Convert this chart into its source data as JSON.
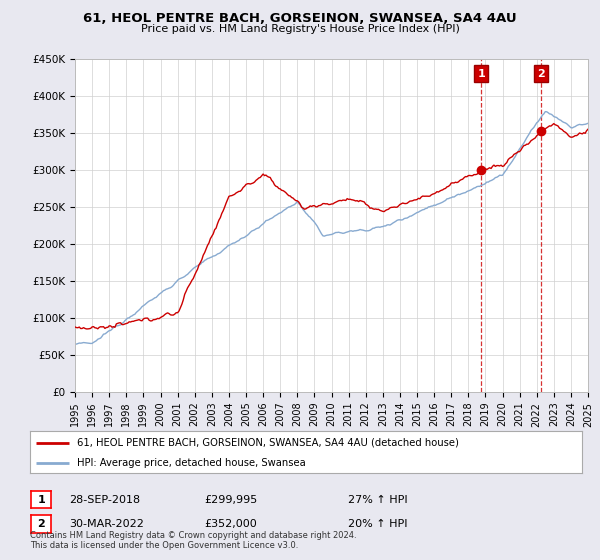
{
  "title": "61, HEOL PENTRE BACH, GORSEINON, SWANSEA, SA4 4AU",
  "subtitle": "Price paid vs. HM Land Registry's House Price Index (HPI)",
  "legend_line1": "61, HEOL PENTRE BACH, GORSEINON, SWANSEA, SA4 4AU (detached house)",
  "legend_line2": "HPI: Average price, detached house, Swansea",
  "footnote": "Contains HM Land Registry data © Crown copyright and database right 2024.\nThis data is licensed under the Open Government Licence v3.0.",
  "marker1_date": "28-SEP-2018",
  "marker1_price": "£299,995",
  "marker1_hpi": "27% ↑ HPI",
  "marker1_year": 2018.75,
  "marker1_value": 299995,
  "marker2_date": "30-MAR-2022",
  "marker2_price": "£352,000",
  "marker2_hpi": "20% ↑ HPI",
  "marker2_year": 2022.25,
  "marker2_value": 352000,
  "red_color": "#cc0000",
  "blue_color": "#88aad0",
  "marker_line_color": "#cc0000",
  "background_color": "#e8e8f0",
  "plot_background": "#ffffff",
  "ylim": [
    0,
    450000
  ],
  "xlim_start": 1995,
  "xlim_end": 2025
}
